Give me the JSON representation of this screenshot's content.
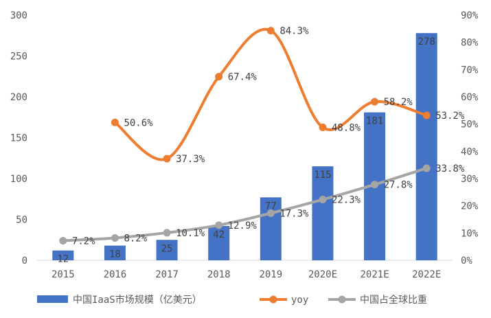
{
  "chart_data": {
    "type": "bar",
    "title": "",
    "categories": [
      "2015",
      "2016",
      "2017",
      "2018",
      "2019",
      "2020E",
      "2021E",
      "2022E"
    ],
    "series": [
      {
        "name": "中国IaaS市场规模（亿美元）",
        "type": "bar",
        "axis": "left",
        "values": [
          12,
          18,
          25,
          42,
          77,
          115,
          181,
          278
        ],
        "labels": [
          "12",
          "18",
          "25",
          "42",
          "77",
          "115",
          "181",
          "278"
        ]
      },
      {
        "name": "yoy",
        "type": "line",
        "smooth": true,
        "axis": "right",
        "values": [
          null,
          50.6,
          37.3,
          67.4,
          84.3,
          48.8,
          58.2,
          53.2
        ],
        "labels": [
          null,
          "50.6%",
          "37.3%",
          "67.4%",
          "84.3%",
          "48.8%",
          "58.2%",
          "53.2%"
        ]
      },
      {
        "name": "中国占全球比重",
        "type": "line",
        "smooth": true,
        "axis": "right",
        "values": [
          7.2,
          8.2,
          10.1,
          12.9,
          17.3,
          22.3,
          27.8,
          33.8
        ],
        "labels": [
          "7.2%",
          "8.2%",
          "10.1%",
          "12.9%",
          "17.3%",
          "22.3%",
          "27.8%",
          "33.8%"
        ]
      }
    ],
    "y_left": {
      "min": 0,
      "max": 300,
      "ticks": [
        "0",
        "50",
        "100",
        "150",
        "200",
        "250",
        "300"
      ]
    },
    "y_right": {
      "min": 0,
      "max": 90,
      "ticks": [
        "0%",
        "10%",
        "20%",
        "30%",
        "40%",
        "50%",
        "60%",
        "70%",
        "80%",
        "90%"
      ]
    },
    "colors": {
      "bar": "#4472C4",
      "yoy": "#ED7D31",
      "share": "#A5A5A5",
      "axis": "#D9D9D9"
    },
    "legend_position": "bottom"
  }
}
